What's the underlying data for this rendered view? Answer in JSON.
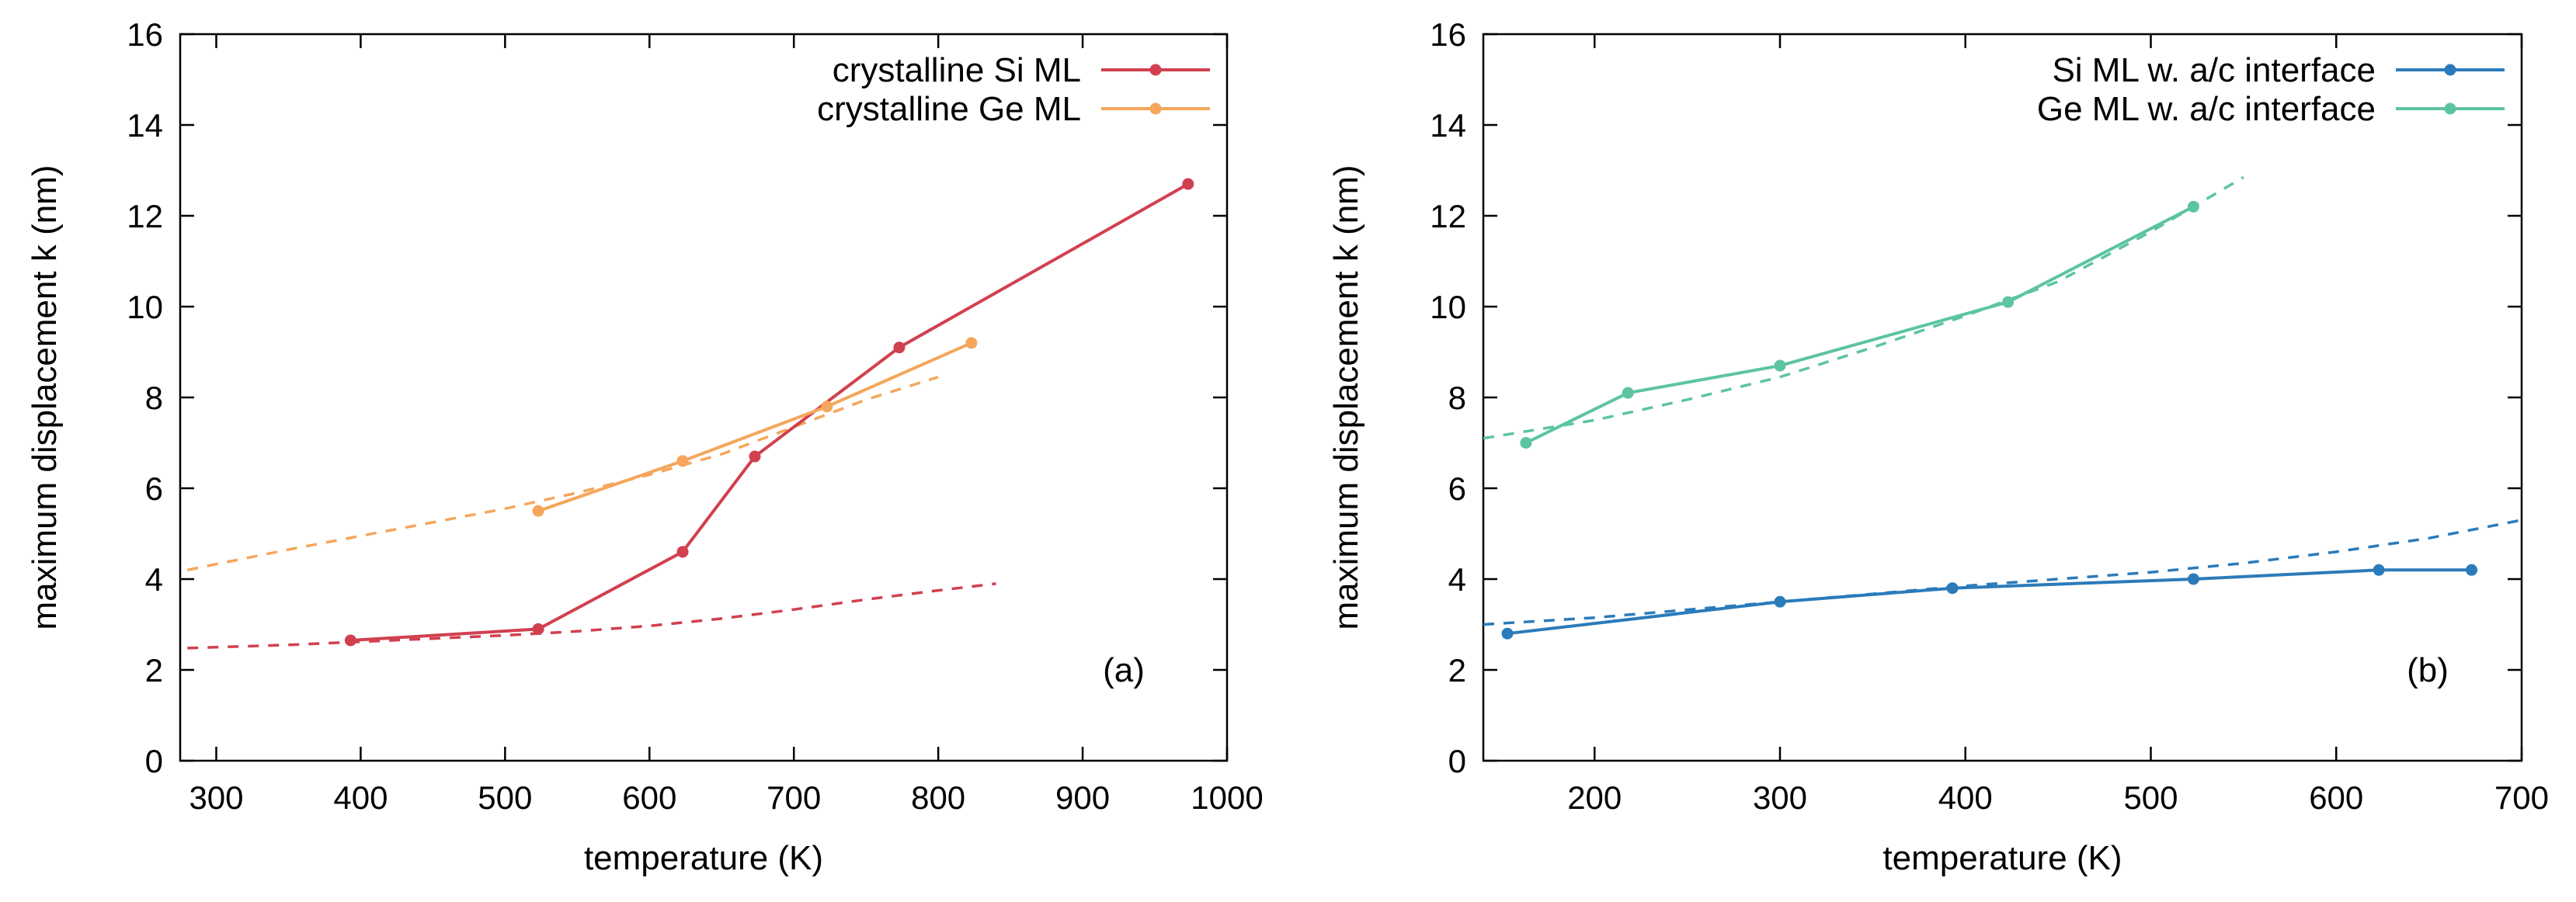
{
  "chart_data": [
    {
      "type": "line",
      "panel_label": "(a)",
      "xlabel": "temperature (K)",
      "ylabel": "maximum displacement k (nm)",
      "xlim": [
        275,
        1000
      ],
      "ylim": [
        0,
        16
      ],
      "xticks": [
        300,
        400,
        500,
        600,
        700,
        800,
        900,
        1000
      ],
      "yticks": [
        0,
        2,
        4,
        6,
        8,
        10,
        12,
        14,
        16
      ],
      "grid": false,
      "legend_position": "top-right",
      "series": [
        {
          "name": "crystalline Si ML",
          "color": "#d1404f",
          "x": [
            393,
            523,
            623,
            673,
            773,
            973
          ],
          "y": [
            2.65,
            2.9,
            4.6,
            6.7,
            9.1,
            12.7
          ]
        },
        {
          "name": "crystalline Ge ML",
          "color": "#f5a65b",
          "x": [
            523,
            623,
            723,
            823
          ],
          "y": [
            5.5,
            6.6,
            7.8,
            9.2
          ]
        }
      ],
      "fits": [
        {
          "color": "#d1404f",
          "x": [
            280,
            350,
            400,
            450,
            500,
            550,
            600,
            650,
            700,
            750,
            800,
            840
          ],
          "y": [
            2.48,
            2.55,
            2.62,
            2.69,
            2.76,
            2.85,
            2.97,
            3.13,
            3.33,
            3.55,
            3.75,
            3.9
          ]
        },
        {
          "color": "#f5a65b",
          "x": [
            280,
            350,
            400,
            450,
            500,
            550,
            600,
            650,
            700,
            750,
            800
          ],
          "y": [
            4.2,
            4.65,
            4.95,
            5.25,
            5.55,
            5.9,
            6.3,
            6.75,
            7.35,
            7.95,
            8.45
          ]
        }
      ]
    },
    {
      "type": "line",
      "panel_label": "(b)",
      "xlabel": "temperature (K)",
      "ylabel": "maximum displacement k (nm)",
      "xlim": [
        140,
        700
      ],
      "ylim": [
        0,
        16
      ],
      "xticks": [
        200,
        300,
        400,
        500,
        600,
        700
      ],
      "yticks": [
        0,
        2,
        4,
        6,
        8,
        10,
        12,
        14,
        16
      ],
      "grid": false,
      "legend_position": "top-right",
      "series": [
        {
          "name": "Si ML w. a/c interface",
          "color": "#2b7bba",
          "x": [
            153,
            300,
            393,
            523,
            623,
            673
          ],
          "y": [
            2.8,
            3.5,
            3.8,
            4.0,
            4.2,
            4.2
          ]
        },
        {
          "name": "Ge ML w. a/c interface",
          "color": "#5cc4a0",
          "x": [
            163,
            218,
            300,
            423,
            523
          ],
          "y": [
            7.0,
            8.1,
            8.7,
            10.1,
            12.2
          ]
        }
      ],
      "fits": [
        {
          "color": "#2b7bba",
          "x": [
            140,
            200,
            300,
            400,
            500,
            550,
            600,
            650,
            700
          ],
          "y": [
            3.0,
            3.15,
            3.5,
            3.85,
            4.15,
            4.35,
            4.6,
            4.9,
            5.3
          ]
        },
        {
          "color": "#5cc4a0",
          "x": [
            140,
            200,
            250,
            300,
            350,
            400,
            450,
            500,
            550
          ],
          "y": [
            7.1,
            7.5,
            7.95,
            8.45,
            9.1,
            9.8,
            10.55,
            11.65,
            12.85
          ]
        }
      ]
    }
  ]
}
